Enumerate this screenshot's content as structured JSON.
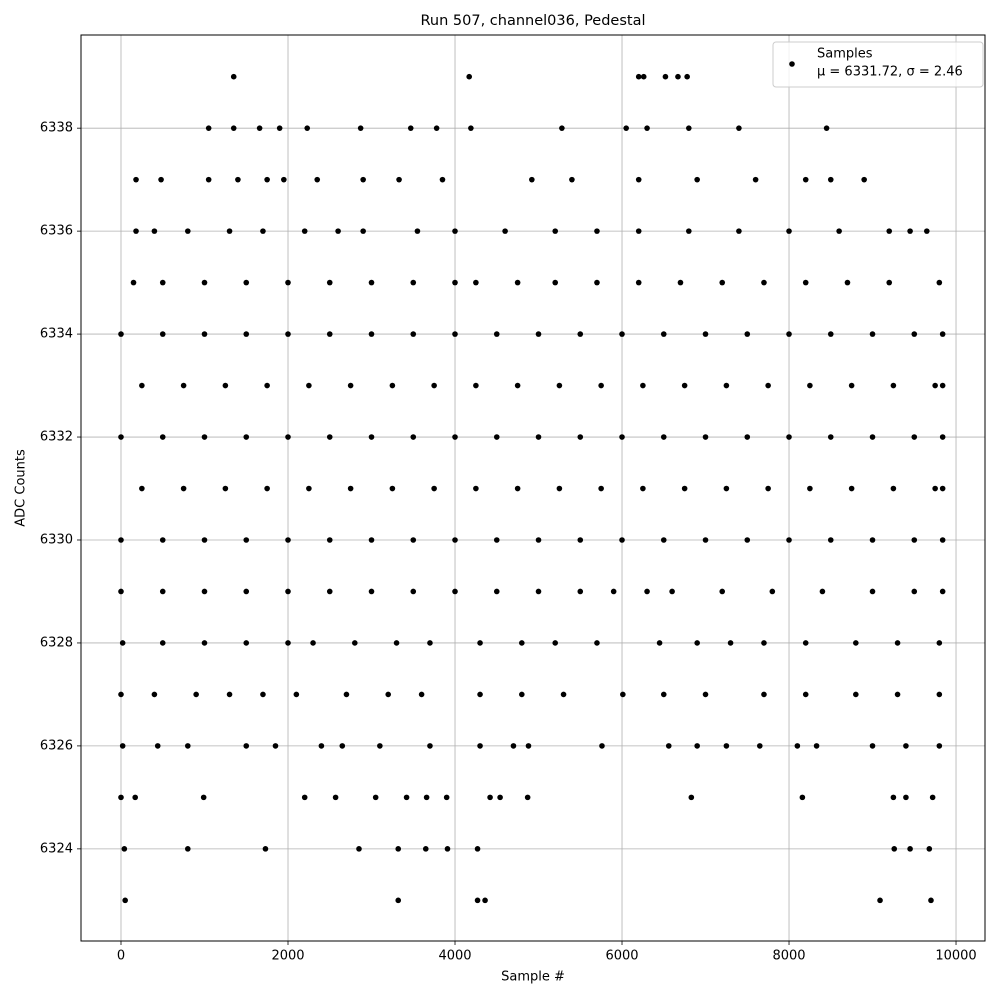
{
  "chart_data": {
    "type": "scatter",
    "title": "Run 507, channel036, Pedestal",
    "xlabel": "Sample #",
    "ylabel": "ADC Counts",
    "xlim": [
      -479,
      10347
    ],
    "ylim": [
      6322.21,
      6339.81
    ],
    "xticks": [
      0,
      2000,
      4000,
      6000,
      8000,
      10000
    ],
    "yticks": [
      6324,
      6326,
      6328,
      6330,
      6332,
      6334,
      6336,
      6338
    ],
    "grid": true,
    "legend": "upper right",
    "annotation": "μ = 6331.72, σ = 2.46",
    "series": [
      {
        "name": "Samples",
        "color": "#000000",
        "x": [
          1350,
          4170,
          6200,
          6260,
          6520,
          6670,
          6780,
          1050,
          1350,
          1660,
          1900,
          2230,
          2870,
          3470,
          3780,
          4190,
          5280,
          6050,
          6300,
          6800,
          7400,
          8450,
          180,
          480,
          1050,
          1400,
          1750,
          1950,
          2350,
          2900,
          3330,
          3850,
          4920,
          5400,
          6200,
          6900,
          7600,
          8200,
          8500,
          8900,
          180,
          400,
          800,
          1300,
          1700,
          2200,
          2600,
          2900,
          3550,
          4000,
          4600,
          5200,
          5700,
          6200,
          6800,
          7400,
          8000,
          8600,
          9200,
          9450,
          9650,
          150,
          500,
          1000,
          1500,
          2000,
          2500,
          3000,
          3500,
          4000,
          4250,
          4750,
          5200,
          5700,
          6200,
          6700,
          7200,
          7700,
          8200,
          8700,
          9200,
          9800,
          0,
          500,
          1000,
          1500,
          2000,
          2500,
          3000,
          3500,
          4000,
          4500,
          5000,
          5500,
          6000,
          6500,
          7000,
          7500,
          8000,
          8500,
          9000,
          9500,
          9840,
          250,
          750,
          1250,
          1750,
          2250,
          2750,
          3250,
          3750,
          4250,
          4750,
          5250,
          5750,
          6250,
          6750,
          7250,
          7750,
          8250,
          8750,
          9250,
          9750,
          9840,
          0,
          500,
          1000,
          1500,
          2000,
          2500,
          3000,
          3500,
          4000,
          4500,
          5000,
          5500,
          6000,
          6500,
          7000,
          7500,
          8000,
          8500,
          9000,
          9500,
          9840,
          250,
          750,
          1250,
          1750,
          2250,
          2750,
          3250,
          3750,
          4250,
          4750,
          5250,
          5750,
          6250,
          6750,
          7250,
          7750,
          8250,
          8750,
          9250,
          9750,
          9840,
          0,
          500,
          1000,
          1500,
          2000,
          2500,
          3000,
          3500,
          4000,
          4500,
          5000,
          5500,
          6000,
          6500,
          7000,
          7500,
          8000,
          8500,
          9000,
          9500,
          9840,
          0,
          500,
          1000,
          1500,
          2000,
          2500,
          3000,
          3500,
          4000,
          4500,
          5000,
          5500,
          5900,
          6300,
          6600,
          7200,
          7800,
          8400,
          9000,
          9500,
          9840,
          20,
          500,
          1000,
          1500,
          2000,
          2300,
          2800,
          3300,
          3700,
          4300,
          4800,
          5200,
          5700,
          6450,
          6900,
          7300,
          7700,
          8200,
          8800,
          9300,
          9800,
          0,
          400,
          900,
          1300,
          1700,
          2100,
          2700,
          3200,
          3600,
          4300,
          4800,
          5300,
          6010,
          6500,
          7000,
          7700,
          8200,
          8800,
          9300,
          9800,
          20,
          440,
          800,
          1500,
          1850,
          2400,
          2650,
          3100,
          3700,
          4300,
          4700,
          4880,
          5760,
          6560,
          6900,
          7250,
          7650,
          8100,
          8330,
          9000,
          9400,
          9800,
          0,
          170,
          990,
          2200,
          2570,
          3050,
          3420,
          3660,
          3900,
          4420,
          4540,
          4870,
          6830,
          8160,
          9250,
          9400,
          9720,
          40,
          800,
          1730,
          2850,
          3320,
          3650,
          3910,
          4270,
          9260,
          9450,
          9680,
          50,
          3320,
          4270,
          4360,
          9090,
          9700
        ],
        "values": [
          6339,
          6339,
          6339,
          6339,
          6339,
          6339,
          6339,
          6338,
          6338,
          6338,
          6338,
          6338,
          6338,
          6338,
          6338,
          6338,
          6338,
          6338,
          6338,
          6338,
          6338,
          6338,
          6337,
          6337,
          6337,
          6337,
          6337,
          6337,
          6337,
          6337,
          6337,
          6337,
          6337,
          6337,
          6337,
          6337,
          6337,
          6337,
          6337,
          6337,
          6336,
          6336,
          6336,
          6336,
          6336,
          6336,
          6336,
          6336,
          6336,
          6336,
          6336,
          6336,
          6336,
          6336,
          6336,
          6336,
          6336,
          6336,
          6336,
          6336,
          6336,
          6335,
          6335,
          6335,
          6335,
          6335,
          6335,
          6335,
          6335,
          6335,
          6335,
          6335,
          6335,
          6335,
          6335,
          6335,
          6335,
          6335,
          6335,
          6335,
          6335,
          6335,
          6334,
          6334,
          6334,
          6334,
          6334,
          6334,
          6334,
          6334,
          6334,
          6334,
          6334,
          6334,
          6334,
          6334,
          6334,
          6334,
          6334,
          6334,
          6334,
          6334,
          6334,
          6333,
          6333,
          6333,
          6333,
          6333,
          6333,
          6333,
          6333,
          6333,
          6333,
          6333,
          6333,
          6333,
          6333,
          6333,
          6333,
          6333,
          6333,
          6333,
          6333,
          6333,
          6332,
          6332,
          6332,
          6332,
          6332,
          6332,
          6332,
          6332,
          6332,
          6332,
          6332,
          6332,
          6332,
          6332,
          6332,
          6332,
          6332,
          6332,
          6332,
          6332,
          6332,
          6331,
          6331,
          6331,
          6331,
          6331,
          6331,
          6331,
          6331,
          6331,
          6331,
          6331,
          6331,
          6331,
          6331,
          6331,
          6331,
          6331,
          6331,
          6331,
          6331,
          6331,
          6330,
          6330,
          6330,
          6330,
          6330,
          6330,
          6330,
          6330,
          6330,
          6330,
          6330,
          6330,
          6330,
          6330,
          6330,
          6330,
          6330,
          6330,
          6330,
          6330,
          6330,
          6329,
          6329,
          6329,
          6329,
          6329,
          6329,
          6329,
          6329,
          6329,
          6329,
          6329,
          6329,
          6329,
          6329,
          6329,
          6329,
          6329,
          6329,
          6329,
          6329,
          6329,
          6328,
          6328,
          6328,
          6328,
          6328,
          6328,
          6328,
          6328,
          6328,
          6328,
          6328,
          6328,
          6328,
          6328,
          6328,
          6328,
          6328,
          6328,
          6328,
          6328,
          6328,
          6327,
          6327,
          6327,
          6327,
          6327,
          6327,
          6327,
          6327,
          6327,
          6327,
          6327,
          6327,
          6327,
          6327,
          6327,
          6327,
          6327,
          6327,
          6327,
          6327,
          6326,
          6326,
          6326,
          6326,
          6326,
          6326,
          6326,
          6326,
          6326,
          6326,
          6326,
          6326,
          6326,
          6326,
          6326,
          6326,
          6326,
          6326,
          6326,
          6326,
          6326,
          6326,
          6325,
          6325,
          6325,
          6325,
          6325,
          6325,
          6325,
          6325,
          6325,
          6325,
          6325,
          6325,
          6325,
          6325,
          6325,
          6325,
          6325,
          6324,
          6324,
          6324,
          6324,
          6324,
          6324,
          6324,
          6324,
          6324,
          6324,
          6324,
          6323,
          6323,
          6323,
          6323,
          6323,
          6323
        ]
      }
    ]
  }
}
